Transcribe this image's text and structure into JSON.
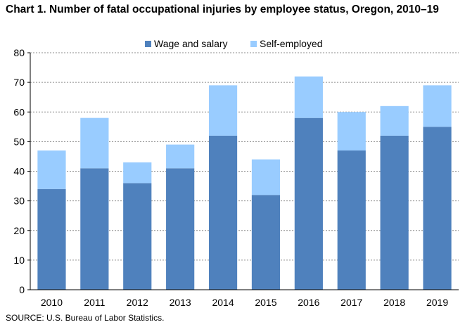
{
  "title": "Chart 1. Number of fatal occupational injuries by employee status, Oregon, 2010–19",
  "source": "SOURCE: U.S. Bureau of Labor Statistics.",
  "chart_data": {
    "type": "bar",
    "stacked": true,
    "title": "Chart 1. Number of fatal occupational injuries by employee status, Oregon, 2010–19",
    "xlabel": "",
    "ylabel": "",
    "categories": [
      "2010",
      "2011",
      "2012",
      "2013",
      "2014",
      "2015",
      "2016",
      "2017",
      "2018",
      "2019"
    ],
    "series": [
      {
        "name": "Wage and salary",
        "color": "#4f81bd",
        "values": [
          34,
          41,
          36,
          41,
          52,
          32,
          58,
          47,
          52,
          55
        ]
      },
      {
        "name": "Self-employed",
        "color": "#99ccff",
        "values": [
          13,
          17,
          7,
          8,
          17,
          12,
          14,
          13,
          10,
          14
        ]
      }
    ],
    "totals": [
      47,
      58,
      43,
      49,
      69,
      44,
      72,
      60,
      62,
      69
    ],
    "ylim": [
      0,
      80
    ],
    "yticks": [
      0,
      10,
      20,
      30,
      40,
      50,
      60,
      70,
      80
    ],
    "grid": true,
    "legend_position": "top"
  }
}
